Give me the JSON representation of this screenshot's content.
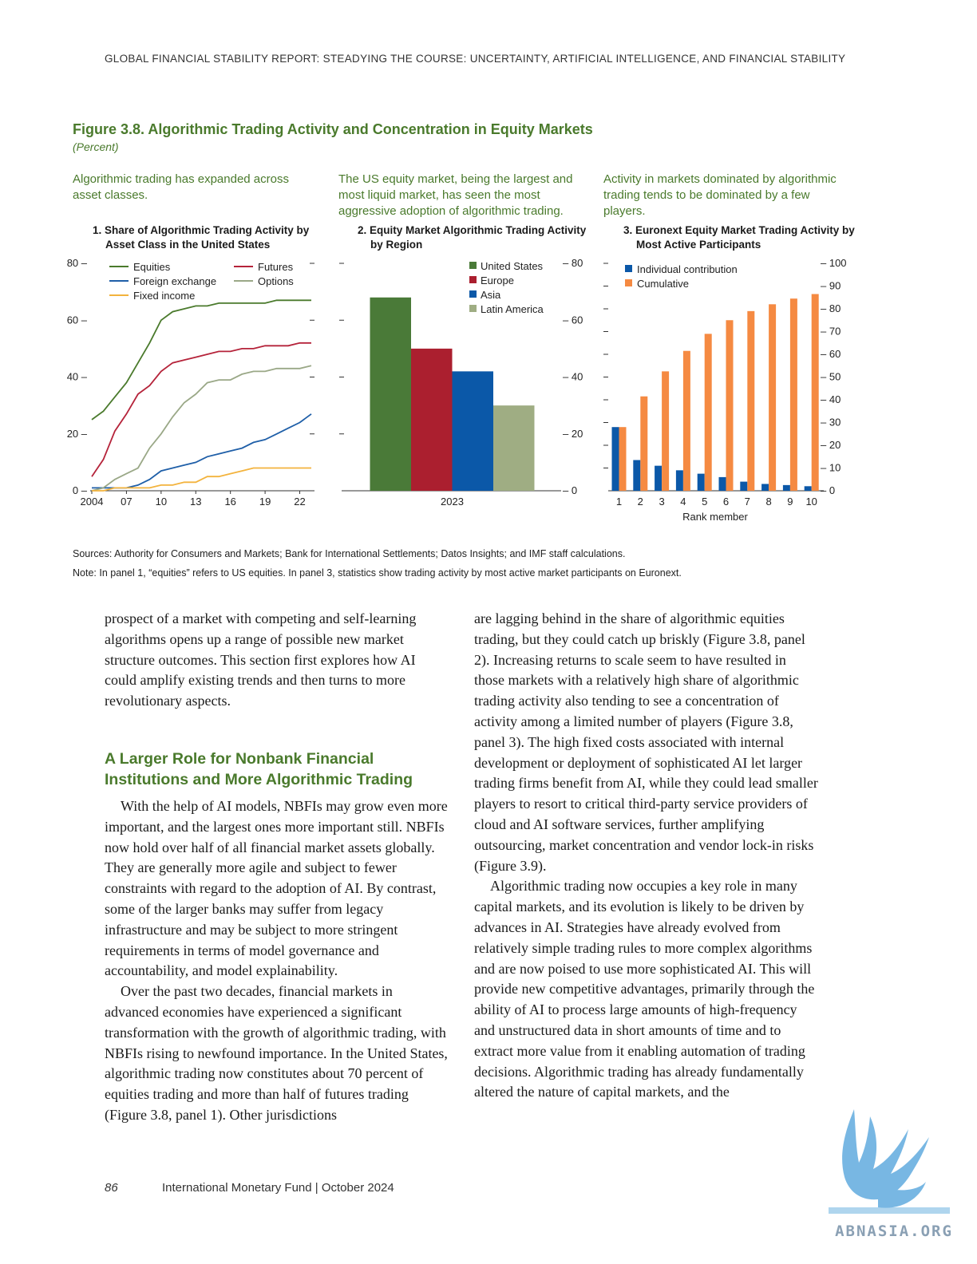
{
  "running_head": "GLOBAL FINANCIAL STABILITY REPORT: STEADYING THE COURSE: UNCERTAINTY, ARTIFICIAL INTELLIGENCE, AND FINANCIAL STABILITY",
  "figure": {
    "title": "Figure 3.8. Algorithmic Trading Activity and Concentration in Equity Markets",
    "unit": "(Percent)",
    "subheads": [
      "Algorithmic trading has expanded across asset classes.",
      "The US equity market, being the largest and most liquid market, has seen the most aggressive adoption of algorithmic trading.",
      "Activity in markets dominated by algorithmic trading tends to be dominated by a few players."
    ],
    "panel_titles": [
      [
        "1. Share of Algorithmic Trading Activity by",
        "Asset Class in the United States"
      ],
      [
        "2. Equity Market Algorithmic Trading Activity",
        "by Region"
      ],
      [
        "3. Euronext Equity Market Trading Activity by",
        "Most Active Participants"
      ]
    ],
    "sources": "Sources: Authority for Consumers and Markets; Bank for International Settlements; Datos Insights; and IMF staff calculations.",
    "note": "Note: In panel 1, “equities” refers to US equities. In panel 3, statistics show trading activity by most active market participants on Euronext."
  },
  "chart_data": [
    {
      "type": "line",
      "x": [
        2004,
        2005,
        2006,
        2007,
        2008,
        2009,
        2010,
        2011,
        2012,
        2013,
        2014,
        2015,
        2016,
        2017,
        2018,
        2019,
        2020,
        2021,
        2022,
        2023
      ],
      "xtick_labels": [
        "2004",
        "07",
        "10",
        "13",
        "16",
        "19",
        "22"
      ],
      "xtick_values": [
        2004,
        2007,
        2010,
        2013,
        2016,
        2019,
        2022
      ],
      "ylim": [
        0,
        80
      ],
      "yticks": [
        0,
        20,
        40,
        60,
        80
      ],
      "legend_placement": "top",
      "series": [
        {
          "name": "Equities",
          "color": "#4a7a2c",
          "values": [
            25,
            28,
            33,
            38,
            45,
            52,
            60,
            63,
            64,
            65,
            65,
            66,
            66,
            66,
            66,
            66,
            67,
            67,
            67,
            67
          ]
        },
        {
          "name": "Futures",
          "color": "#b5233a",
          "values": [
            5,
            11,
            21,
            27,
            34,
            37,
            42,
            45,
            46,
            47,
            48,
            49,
            49,
            50,
            50,
            51,
            51,
            51,
            52,
            52
          ]
        },
        {
          "name": "Foreign exchange",
          "color": "#1f5fa8",
          "values": [
            1,
            1,
            1,
            1,
            2,
            4,
            7,
            8,
            9,
            10,
            12,
            13,
            14,
            15,
            17,
            18,
            20,
            22,
            24,
            27
          ]
        },
        {
          "name": "Options",
          "color": "#9aa887",
          "values": [
            0,
            1,
            4,
            6,
            8,
            15,
            20,
            26,
            31,
            34,
            38,
            39,
            39,
            41,
            42,
            42,
            43,
            43,
            43,
            44
          ]
        },
        {
          "name": "Fixed income",
          "color": "#f3b33d",
          "values": [
            0,
            0,
            1,
            1,
            1,
            1,
            2,
            2,
            3,
            3,
            5,
            5,
            6,
            7,
            8,
            8,
            8,
            8,
            8,
            8
          ]
        }
      ]
    },
    {
      "type": "bar",
      "categories": [
        "2023"
      ],
      "ylim": [
        0,
        80
      ],
      "yticks": [
        0,
        20,
        40,
        60,
        80
      ],
      "legend_placement": "top-right",
      "series": [
        {
          "name": "United States",
          "color": "#4a7a38",
          "values": [
            68
          ]
        },
        {
          "name": "Europe",
          "color": "#ab1f2f",
          "values": [
            50
          ]
        },
        {
          "name": "Asia",
          "color": "#0b58a8",
          "values": [
            42
          ]
        },
        {
          "name": "Latin America",
          "color": "#9fad83",
          "values": [
            30
          ]
        }
      ]
    },
    {
      "type": "bar",
      "categories": [
        "1",
        "2",
        "3",
        "4",
        "5",
        "6",
        "7",
        "8",
        "9",
        "10"
      ],
      "xlabel": "Rank member",
      "ylim": [
        0,
        100
      ],
      "yticks": [
        0,
        10,
        20,
        30,
        40,
        50,
        60,
        70,
        80,
        90,
        100
      ],
      "legend_placement": "top-left",
      "series": [
        {
          "name": "Individual contribution",
          "color": "#0b58a8",
          "values": [
            28,
            13.5,
            11,
            9,
            7.5,
            6,
            4,
            3,
            2.5,
            2
          ]
        },
        {
          "name": "Cumulative",
          "color": "#f58a42",
          "values": [
            28,
            41.5,
            52.5,
            61.5,
            69,
            75,
            79,
            82,
            84.5,
            86.5
          ]
        }
      ]
    }
  ],
  "body": {
    "left_intro": "prospect of a market with competing and self-learning algorithms opens up a range of possible new market structure outcomes. This section first explores how AI could amplify existing trends and then turns to more revolutionary aspects.",
    "section_heading": "A Larger Role for Nonbank Financial Institutions and More Algorithmic Trading",
    "left_p1": "With the help of AI models, NBFIs may grow even more important, and the largest ones more important still. NBFIs now hold over half of all financial market assets globally. They are generally more agile and subject to fewer constraints with regard to the adoption of AI. By contrast, some of the larger banks may suffer from legacy infrastructure and may be subject to more stringent requirements in terms of model governance and accountability, and model explainability.",
    "left_p2": "Over the past two decades, financial markets in advanced economies have experienced a significant transformation with the growth of algorithmic trading, with NBFIs rising to newfound importance. In the United States, algorithmic trading now constitutes about 70 percent of equities trading and more than half of futures trading (Figure 3.8, panel 1). Other jurisdictions",
    "right_p1": "are lagging behind in the share of algorithmic equities trading, but they could catch up briskly (Figure 3.8, panel 2). Increasing returns to scale seem to have resulted in those markets with a relatively high share of algorithmic trading activity also tending to see a concentration of activity among a limited number of players (Figure 3.8, panel 3). The high fixed costs associated with internal development or deployment of sophisticated AI let larger trading firms benefit from AI, while they could lead smaller players to resort to critical third-party service providers of cloud and AI software services, further amplifying outsourcing, market concentration and vendor lock-in risks (Figure 3.9).",
    "right_p2": "Algorithmic trading now occupies a key role in many capital markets, and its evolution is likely to be driven by advances in AI. Strategies have already evolved from relatively simple trading rules to more complex algorithms and are now poised to use more sophisticated AI. This will provide new competitive advantages, primarily through the ability of AI to process large amounts of high-frequency and unstructured data in short amounts of time and to extract more value from it enabling automation of trading decisions. Algorithmic trading has already fundamentally altered the nature of capital markets, and the"
  },
  "footer": {
    "page_number": "86",
    "publisher": "International Monetary Fund | October 2024"
  },
  "watermark": {
    "text": "ABNASIA.ORG",
    "color": "#6ab0e0",
    "icon": "griffin-logo-icon"
  }
}
